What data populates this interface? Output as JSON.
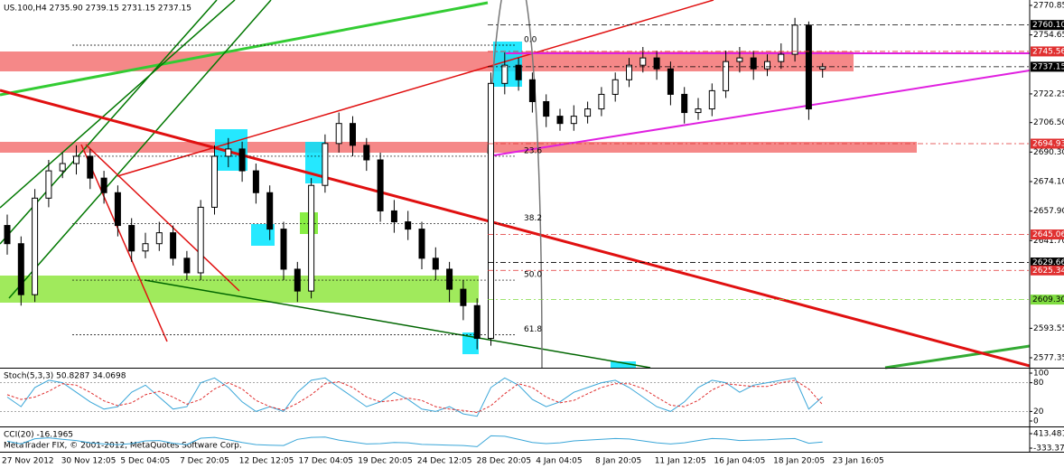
{
  "chart_data": [
    {
      "type": "candlestick",
      "title": "US.100,H4  2735.90 2739.15 2731.15 2737.15",
      "footer": "MetaTrader FIX, © 2001-2012, MetaQuotes Software Corp.",
      "x_labels": [
        "27 Nov 2012",
        "30 Nov 12:05",
        "5 Dec 04:05",
        "7 Dec 20:05",
        "12 Dec 12:05",
        "17 Dec 04:05",
        "19 Dec 20:05",
        "24 Dec 12:05",
        "28 Dec 20:05",
        "4 Jan 04:05",
        "8 Jan 20:05",
        "11 Jan 12:05",
        "16 Jan 04:05",
        "18 Jan 20:05",
        "23 Jan 16:05"
      ],
      "open": [
        2650,
        2640,
        2612,
        2665,
        2680,
        2684,
        2688,
        2676,
        2668,
        2650,
        2636,
        2640,
        2646,
        2632,
        2624,
        2660,
        2688,
        2692,
        2680,
        2668,
        2648,
        2626,
        2614,
        2672,
        2695,
        2706,
        2694,
        2686,
        2658,
        2652,
        2648,
        2632,
        2626,
        2615,
        2606,
        2588,
        2728,
        2738,
        2730,
        2718,
        2710,
        2706,
        2710,
        2714,
        2722,
        2730,
        2738,
        2742,
        2736,
        2722,
        2712,
        2714,
        2724,
        2740,
        2742,
        2736,
        2740,
        2744,
        2760,
        2735.9
      ],
      "high": [
        2656,
        2644,
        2670,
        2686,
        2690,
        2694,
        2692,
        2680,
        2672,
        2654,
        2646,
        2652,
        2650,
        2636,
        2664,
        2694,
        2698,
        2696,
        2684,
        2672,
        2652,
        2630,
        2676,
        2700,
        2712,
        2710,
        2698,
        2690,
        2664,
        2658,
        2652,
        2638,
        2630,
        2620,
        2610,
        2734,
        2745,
        2742,
        2734,
        2722,
        2714,
        2716,
        2718,
        2726,
        2734,
        2742,
        2748,
        2746,
        2740,
        2726,
        2720,
        2728,
        2746,
        2748,
        2746,
        2744,
        2750,
        2764,
        2762,
        2739.15
      ],
      "low": [
        2634,
        2606,
        2608,
        2660,
        2676,
        2678,
        2670,
        2662,
        2644,
        2630,
        2632,
        2636,
        2628,
        2620,
        2620,
        2656,
        2682,
        2674,
        2662,
        2642,
        2620,
        2608,
        2610,
        2668,
        2690,
        2688,
        2680,
        2652,
        2646,
        2642,
        2626,
        2620,
        2608,
        2598,
        2582,
        2584,
        2722,
        2724,
        2712,
        2704,
        2702,
        2702,
        2706,
        2710,
        2718,
        2726,
        2734,
        2730,
        2716,
        2706,
        2708,
        2710,
        2720,
        2734,
        2730,
        2732,
        2736,
        2740,
        2708,
        2731.15
      ],
      "close": [
        2640,
        2612,
        2665,
        2680,
        2684,
        2688,
        2676,
        2668,
        2650,
        2636,
        2640,
        2646,
        2632,
        2624,
        2660,
        2688,
        2692,
        2680,
        2668,
        2648,
        2626,
        2614,
        2672,
        2695,
        2706,
        2694,
        2686,
        2658,
        2652,
        2648,
        2632,
        2626,
        2615,
        2606,
        2588,
        2728,
        2738,
        2730,
        2718,
        2710,
        2706,
        2710,
        2714,
        2722,
        2730,
        2738,
        2742,
        2736,
        2722,
        2712,
        2714,
        2724,
        2740,
        2742,
        2736,
        2740,
        2744,
        2760,
        2714,
        2737.15
      ],
      "ylim": [
        2571.9,
        2773.8
      ],
      "yticks": [
        2770.85,
        2754.65,
        2722.25,
        {
          "value": 2706.5,
          "label": "2706.50"
        },
        {
          "value": 2690.3,
          "label": "2690.30"
        },
        {
          "value": 2674.1,
          "label": "2674.10"
        },
        {
          "value": 2657.9,
          "label": "2657.90"
        },
        {
          "value": 2641.7,
          "label": "2641.70"
        },
        2593.55,
        2577.35
      ],
      "levels": [
        {
          "value": 2760.1,
          "label": "2760.10",
          "color": "#000000"
        },
        {
          "value": 2745.56,
          "label": "2745.56",
          "color": "#e03030"
        },
        {
          "value": 2737.15,
          "label": "2737.15",
          "color": "#000000"
        },
        {
          "value": 2694.93,
          "label": "2694.93",
          "color": "#e03030"
        },
        {
          "value": 2645.06,
          "label": "2645.06",
          "color": "#e03030"
        },
        {
          "value": 2629.66,
          "label": "2629.66",
          "color": "#000000"
        },
        {
          "value": 2625.34,
          "label": "2625.34",
          "color": "#e03030"
        },
        {
          "value": 2609.3,
          "label": "2609.30",
          "color": "#7fdc40"
        }
      ],
      "fib_levels": [
        {
          "value": 2749,
          "label": "0.0"
        },
        {
          "value": 2688,
          "label": "23.6"
        },
        {
          "value": 2651,
          "label": "38.2"
        },
        {
          "value": 2620,
          "label": "50.0"
        },
        {
          "value": 2590,
          "label": "61.8"
        }
      ],
      "up_color": "#ffffff",
      "down_color": "#000000"
    },
    {
      "type": "line",
      "title": "Stoch(5,3,3) 50.8287 34.0698",
      "ylim": [
        0,
        100
      ],
      "yticks": [
        100,
        80,
        20,
        0
      ],
      "levels": [
        80,
        20
      ],
      "series": [
        {
          "color": "#3aa6d8",
          "dash": false,
          "values": [
            50,
            30,
            70,
            85,
            80,
            60,
            40,
            25,
            30,
            60,
            75,
            50,
            25,
            30,
            80,
            90,
            70,
            40,
            20,
            30,
            20,
            60,
            85,
            90,
            70,
            50,
            30,
            40,
            60,
            45,
            25,
            20,
            30,
            15,
            10,
            70,
            90,
            75,
            45,
            30,
            40,
            60,
            70,
            80,
            85,
            70,
            50,
            30,
            20,
            40,
            70,
            85,
            80,
            60,
            75,
            80,
            85,
            90,
            25,
            50.8287
          ]
        },
        {
          "color": "#e03030",
          "dash": true,
          "values": [
            55,
            45,
            50,
            62,
            78,
            75,
            60,
            42,
            32,
            38,
            55,
            62,
            50,
            35,
            45,
            67,
            80,
            67,
            43,
            30,
            23,
            37,
            55,
            78,
            82,
            70,
            50,
            40,
            43,
            48,
            43,
            30,
            25,
            22,
            18,
            32,
            57,
            78,
            70,
            50,
            38,
            43,
            57,
            70,
            78,
            78,
            68,
            50,
            33,
            30,
            43,
            65,
            78,
            75,
            72,
            72,
            80,
            85,
            67,
            34.0698
          ]
        }
      ]
    },
    {
      "type": "line",
      "title": "CCI(20) -16.1965",
      "ylim": [
        -333.374,
        413.481
      ],
      "yticks": [
        413.481,
        -333.374
      ],
      "levels": [],
      "series": [
        {
          "color": "#3aa6d8",
          "dash": false,
          "values": [
            20,
            -120,
            150,
            200,
            120,
            60,
            -60,
            -120,
            -150,
            -100,
            40,
            60,
            -80,
            -150,
            180,
            220,
            100,
            -40,
            -150,
            -180,
            -200,
            120,
            220,
            240,
            80,
            -20,
            -120,
            -100,
            -40,
            -60,
            -140,
            -160,
            -180,
            -200,
            -260,
            300,
            280,
            120,
            -40,
            -100,
            -60,
            40,
            80,
            120,
            160,
            140,
            40,
            -60,
            -120,
            -60,
            60,
            160,
            140,
            60,
            80,
            100,
            140,
            160,
            -80,
            -16.1965
          ]
        }
      ]
    }
  ]
}
